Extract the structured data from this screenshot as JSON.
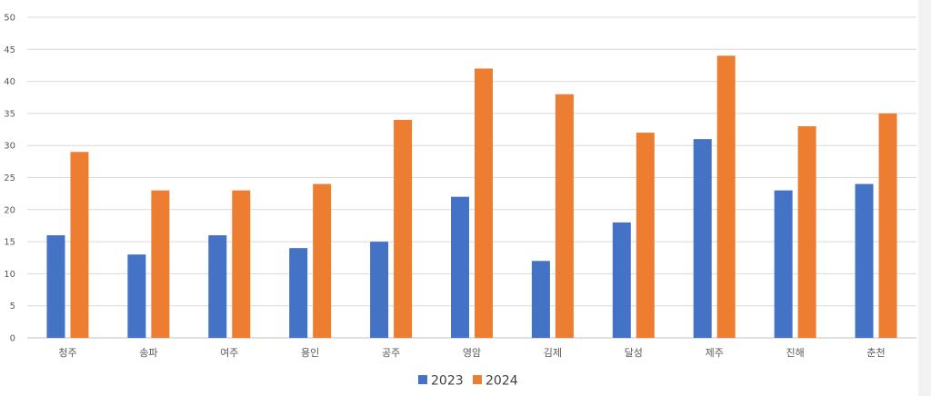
{
  "chart_data": {
    "type": "bar",
    "title": "",
    "xlabel": "",
    "ylabel": "",
    "ylim": [
      0,
      50
    ],
    "yticks": [
      0,
      5,
      10,
      15,
      20,
      25,
      30,
      35,
      40,
      45,
      50
    ],
    "grid": true,
    "legend": "bottom-center",
    "categories": [
      "청주",
      "송파",
      "여주",
      "용인",
      "공주",
      "영암",
      "김제",
      "달성",
      "제주",
      "진해",
      "춘천"
    ],
    "series": [
      {
        "name": "2023",
        "color": "#4472c4",
        "values": [
          16,
          13,
          16,
          14,
          15,
          22,
          12,
          18,
          31,
          23,
          24
        ]
      },
      {
        "name": "2024",
        "color": "#ed7d31",
        "values": [
          29,
          23,
          23,
          24,
          34,
          42,
          38,
          32,
          44,
          33,
          35
        ]
      }
    ]
  }
}
